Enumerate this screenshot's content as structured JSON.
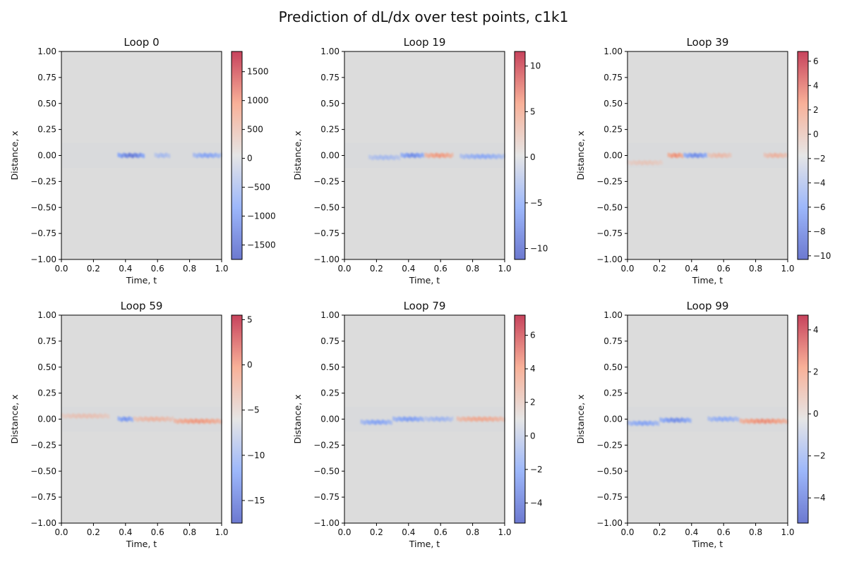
{
  "figure": {
    "title": "Prediction of dL/dx over test points, c1k1"
  },
  "chart_data": [
    {
      "type": "heatmap",
      "title": "Loop 0",
      "xlabel": "Time, t",
      "ylabel": "Distance, x",
      "xlim": [
        0.0,
        1.0
      ],
      "ylim": [
        -1.0,
        1.0
      ],
      "xticks": [
        "0.0",
        "0.2",
        "0.4",
        "0.6",
        "0.8",
        "1.0"
      ],
      "yticks": [
        "1.00",
        "0.75",
        "0.50",
        "0.25",
        "0.00",
        "−0.25",
        "−0.50",
        "−0.75",
        "−1.00"
      ],
      "colorbar": {
        "range": [
          -1750,
          1850
        ],
        "ticks": [
          1500,
          1000,
          500,
          0,
          -500,
          -1000,
          -1500
        ],
        "tick_labels": [
          "1500",
          "1000",
          "500",
          "0",
          "−500",
          "−1000",
          "−1500"
        ],
        "colormap": "coolwarm"
      },
      "features": [
        {
          "t": [
            0.35,
            0.52
          ],
          "x": 0.0,
          "sign": "negative",
          "intensity": 0.85
        },
        {
          "t": [
            0.58,
            0.68
          ],
          "x": 0.0,
          "sign": "negative",
          "intensity": 0.35
        },
        {
          "t": [
            0.82,
            1.0
          ],
          "x": 0.0,
          "sign": "negative",
          "intensity": 0.55
        }
      ]
    },
    {
      "type": "heatmap",
      "title": "Loop 19",
      "xlabel": "Time, t",
      "ylabel": "Distance, x",
      "xlim": [
        0.0,
        1.0
      ],
      "ylim": [
        -1.0,
        1.0
      ],
      "xticks": [
        "0.0",
        "0.2",
        "0.4",
        "0.6",
        "0.8",
        "1.0"
      ],
      "yticks": [
        "1.00",
        "0.75",
        "0.50",
        "0.25",
        "0.00",
        "−0.25",
        "−0.50",
        "−0.75",
        "−1.00"
      ],
      "colorbar": {
        "range": [
          -11.2,
          11.6
        ],
        "ticks": [
          10,
          5,
          0,
          -5,
          -10
        ],
        "tick_labels": [
          "10",
          "5",
          "0",
          "−5",
          "−10"
        ],
        "colormap": "coolwarm"
      },
      "features": [
        {
          "t": [
            0.15,
            0.35
          ],
          "x": -0.02,
          "sign": "negative",
          "intensity": 0.35
        },
        {
          "t": [
            0.35,
            0.5
          ],
          "x": 0.0,
          "sign": "negative",
          "intensity": 0.7
        },
        {
          "t": [
            0.5,
            0.68
          ],
          "x": 0.0,
          "sign": "positive",
          "intensity": 0.55
        },
        {
          "t": [
            0.72,
            1.0
          ],
          "x": -0.01,
          "sign": "negative",
          "intensity": 0.5
        }
      ]
    },
    {
      "type": "heatmap",
      "title": "Loop 39",
      "xlabel": "Time, t",
      "ylabel": "Distance, x",
      "xlim": [
        0.0,
        1.0
      ],
      "ylim": [
        -1.0,
        1.0
      ],
      "xticks": [
        "0.0",
        "0.2",
        "0.4",
        "0.6",
        "0.8",
        "1.0"
      ],
      "yticks": [
        "1.00",
        "0.75",
        "0.50",
        "0.25",
        "0.00",
        "−0.25",
        "−0.50",
        "−0.75",
        "−1.00"
      ],
      "colorbar": {
        "range": [
          -10.3,
          6.8
        ],
        "ticks": [
          6,
          4,
          2,
          0,
          -2,
          -4,
          -6,
          -8,
          -10
        ],
        "tick_labels": [
          "6",
          "4",
          "2",
          "0",
          "−2",
          "−4",
          "−6",
          "−8",
          "−10"
        ],
        "colormap": "coolwarm"
      },
      "features": [
        {
          "t": [
            0.0,
            0.22
          ],
          "x": -0.07,
          "sign": "positive",
          "intensity": 0.2
        },
        {
          "t": [
            0.25,
            0.35
          ],
          "x": 0.0,
          "sign": "positive",
          "intensity": 0.6
        },
        {
          "t": [
            0.35,
            0.5
          ],
          "x": 0.0,
          "sign": "negative",
          "intensity": 0.7
        },
        {
          "t": [
            0.5,
            0.65
          ],
          "x": 0.0,
          "sign": "positive",
          "intensity": 0.3
        },
        {
          "t": [
            0.85,
            1.0
          ],
          "x": 0.0,
          "sign": "positive",
          "intensity": 0.35
        }
      ]
    },
    {
      "type": "heatmap",
      "title": "Loop 59",
      "xlabel": "Time, t",
      "ylabel": "Distance, x",
      "xlim": [
        0.0,
        1.0
      ],
      "ylim": [
        -1.0,
        1.0
      ],
      "xticks": [
        "0.0",
        "0.2",
        "0.4",
        "0.6",
        "0.8",
        "1.0"
      ],
      "yticks": [
        "1.00",
        "0.75",
        "0.50",
        "0.25",
        "0.00",
        "−0.25",
        "−0.50",
        "−0.75",
        "−1.00"
      ],
      "colorbar": {
        "range": [
          -17.5,
          5.5
        ],
        "ticks": [
          5,
          0,
          -5,
          -10,
          -15
        ],
        "tick_labels": [
          "5",
          "0",
          "−5",
          "−10",
          "−15"
        ],
        "colormap": "coolwarm"
      },
      "features": [
        {
          "t": [
            0.0,
            0.3
          ],
          "x": 0.03,
          "sign": "positive",
          "intensity": 0.25
        },
        {
          "t": [
            0.35,
            0.45
          ],
          "x": 0.0,
          "sign": "negative",
          "intensity": 0.65
        },
        {
          "t": [
            0.45,
            0.7
          ],
          "x": 0.0,
          "sign": "positive",
          "intensity": 0.35
        },
        {
          "t": [
            0.7,
            1.0
          ],
          "x": -0.02,
          "sign": "positive",
          "intensity": 0.55
        }
      ]
    },
    {
      "type": "heatmap",
      "title": "Loop 79",
      "xlabel": "Time, t",
      "ylabel": "Distance, x",
      "xlim": [
        0.0,
        1.0
      ],
      "ylim": [
        -1.0,
        1.0
      ],
      "xticks": [
        "0.0",
        "0.2",
        "0.4",
        "0.6",
        "0.8",
        "1.0"
      ],
      "yticks": [
        "1.00",
        "0.75",
        "0.50",
        "0.25",
        "0.00",
        "−0.25",
        "−0.50",
        "−0.75",
        "−1.00"
      ],
      "colorbar": {
        "range": [
          -5.2,
          7.2
        ],
        "ticks": [
          6,
          4,
          2,
          0,
          -2,
          -4
        ],
        "tick_labels": [
          "6",
          "4",
          "2",
          "0",
          "−2",
          "−4"
        ],
        "colormap": "coolwarm"
      },
      "features": [
        {
          "t": [
            0.1,
            0.3
          ],
          "x": -0.03,
          "sign": "negative",
          "intensity": 0.55
        },
        {
          "t": [
            0.3,
            0.5
          ],
          "x": 0.0,
          "sign": "negative",
          "intensity": 0.6
        },
        {
          "t": [
            0.5,
            0.68
          ],
          "x": 0.0,
          "sign": "negative",
          "intensity": 0.4
        },
        {
          "t": [
            0.7,
            1.0
          ],
          "x": 0.0,
          "sign": "positive",
          "intensity": 0.45
        }
      ]
    },
    {
      "type": "heatmap",
      "title": "Loop 99",
      "xlabel": "Time, t",
      "ylabel": "Distance, x",
      "xlim": [
        0.0,
        1.0
      ],
      "ylim": [
        -1.0,
        1.0
      ],
      "xticks": [
        "0.0",
        "0.2",
        "0.4",
        "0.6",
        "0.8",
        "1.0"
      ],
      "yticks": [
        "1.00",
        "0.75",
        "0.50",
        "0.25",
        "0.00",
        "−0.25",
        "−0.50",
        "−0.75",
        "−1.00"
      ],
      "colorbar": {
        "range": [
          -5.2,
          4.7
        ],
        "ticks": [
          4,
          2,
          0,
          -2,
          -4
        ],
        "tick_labels": [
          "4",
          "2",
          "0",
          "−2",
          "−4"
        ],
        "colormap": "coolwarm"
      },
      "features": [
        {
          "t": [
            0.0,
            0.2
          ],
          "x": -0.04,
          "sign": "negative",
          "intensity": 0.55
        },
        {
          "t": [
            0.2,
            0.4
          ],
          "x": -0.01,
          "sign": "negative",
          "intensity": 0.7
        },
        {
          "t": [
            0.5,
            0.7
          ],
          "x": 0.0,
          "sign": "negative",
          "intensity": 0.5
        },
        {
          "t": [
            0.7,
            1.0
          ],
          "x": -0.02,
          "sign": "positive",
          "intensity": 0.6
        }
      ]
    }
  ]
}
